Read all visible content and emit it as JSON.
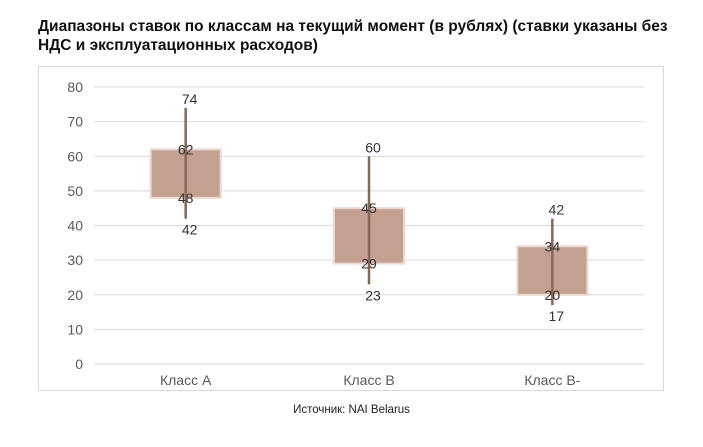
{
  "title": "Диапазоны ставок по классам на текущий момент (в рублях) (ставки указаны без НДС и эксплуатационных расходов)",
  "source": "Источник: NAI Belarus",
  "chart_data": {
    "type": "candlestick",
    "categories": [
      "Класс А",
      "Класс В",
      "Класс В-"
    ],
    "low": [
      42,
      23,
      17
    ],
    "open": [
      48,
      29,
      20
    ],
    "close": [
      62,
      45,
      34
    ],
    "high": [
      74,
      60,
      42
    ],
    "ylim": [
      0,
      80
    ],
    "yticks": [
      0,
      10,
      20,
      30,
      40,
      50,
      60,
      70,
      80
    ],
    "grid": true,
    "legend": "none",
    "colors": {
      "box": "#c4a091",
      "whisker": "#8b6656",
      "grid": "#d9d9d9"
    }
  }
}
